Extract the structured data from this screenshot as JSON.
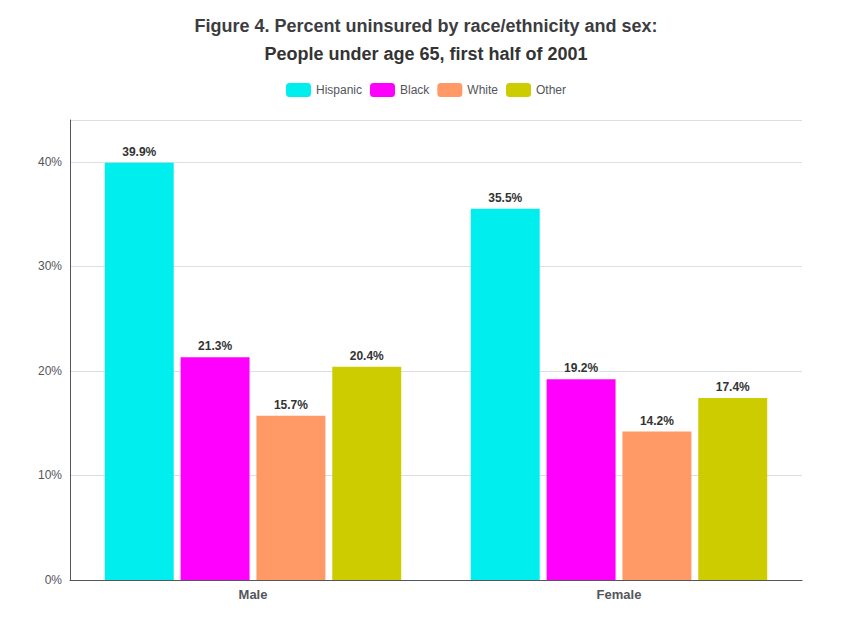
{
  "chart_data": {
    "type": "bar",
    "title": "Figure 4. Percent uninsured by race/ethnicity and sex:",
    "subtitle": "People under age 65, first half of 2001",
    "categories": [
      "Male",
      "Female"
    ],
    "series": [
      {
        "name": "Hispanic",
        "color": "#00eeee",
        "values": [
          39.9,
          35.5
        ],
        "value_labels": [
          "39.9%",
          "35.5%"
        ]
      },
      {
        "name": "Black",
        "color": "#ff00ff",
        "values": [
          21.3,
          19.2
        ],
        "value_labels": [
          "21.3%",
          "19.2%"
        ]
      },
      {
        "name": "White",
        "color": "#ff9966",
        "values": [
          15.7,
          14.2
        ],
        "value_labels": [
          "15.7%",
          "14.2%"
        ]
      },
      {
        "name": "Other",
        "color": "#cccc00",
        "values": [
          20.4,
          17.4
        ],
        "value_labels": [
          "20.4%",
          "17.4%"
        ]
      }
    ],
    "ylim": [
      0,
      44
    ],
    "yticks": [
      {
        "value": 0,
        "label": "0%"
      },
      {
        "value": 10,
        "label": "10%"
      },
      {
        "value": 20,
        "label": "20%"
      },
      {
        "value": 30,
        "label": "30%"
      },
      {
        "value": 40,
        "label": "40%"
      }
    ],
    "grid": true,
    "legend": "top",
    "data_labels": true
  }
}
